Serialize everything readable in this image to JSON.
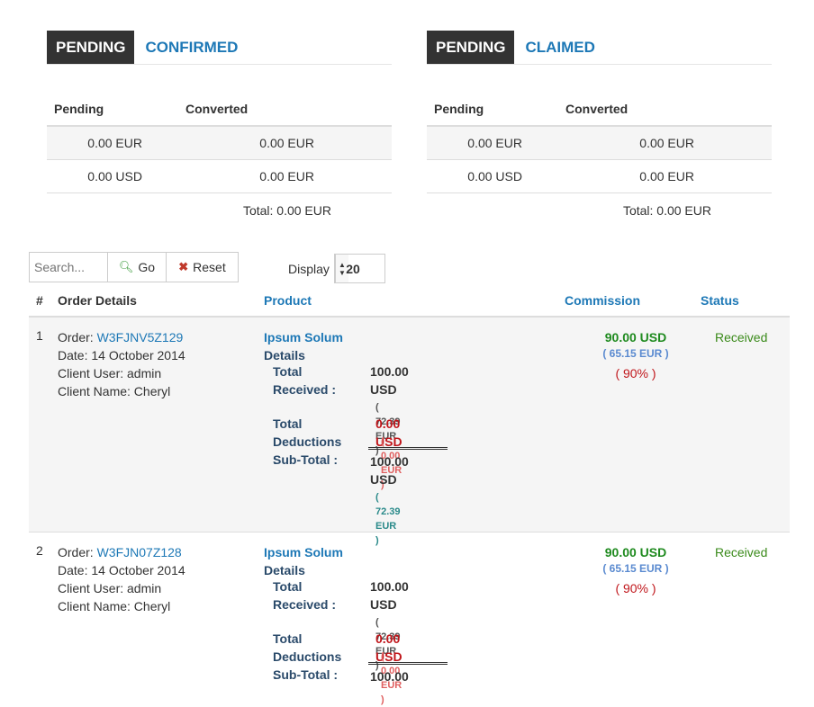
{
  "panels": [
    {
      "tab_active": "PENDING",
      "tab_link": "CONFIRMED",
      "headers": [
        "Pending",
        "Converted"
      ],
      "rows": [
        [
          "0.00 EUR",
          "0.00 EUR"
        ],
        [
          "0.00 USD",
          "0.00 EUR"
        ]
      ],
      "total": "Total: 0.00 EUR"
    },
    {
      "tab_active": "PENDING",
      "tab_link": "CLAIMED",
      "headers": [
        "Pending",
        "Converted"
      ],
      "rows": [
        [
          "0.00 EUR",
          "0.00 EUR"
        ],
        [
          "0.00 USD",
          "0.00 EUR"
        ]
      ],
      "total": "Total: 0.00 EUR"
    }
  ],
  "toolbar": {
    "search_placeholder": "Search...",
    "go_label": "Go",
    "reset_label": "Reset",
    "display_label": "Display",
    "display_value": "20"
  },
  "table": {
    "headers": {
      "num": "#",
      "order_details": "Order Details",
      "product": "Product",
      "commission": "Commission",
      "status": "Status"
    },
    "rows": [
      {
        "num": "1",
        "order_label": "Order:",
        "order_id": "W3FJNV5Z129",
        "date": "Date: 14 October 2014",
        "client_user": "Client User: admin",
        "client_name": "Client Name: Cheryl",
        "product_name": "Ipsum Solum",
        "details_label": "Details",
        "total_received_label": "Total Received :",
        "total_received_amount": "100.00",
        "total_received_currency": "USD",
        "total_received_eur": "( 72.39 EUR )",
        "deductions_label_1": "Total",
        "deductions_label_2": "Deductions :",
        "deductions_usd": "0.00 USD",
        "deductions_eur": "( 0.00 EUR )",
        "subtotal_label": "Sub-Total :",
        "subtotal_amount": "100.00",
        "subtotal_currency": "USD",
        "subtotal_eur": "( 72.39 EUR )",
        "commission_usd": "90.00 USD",
        "commission_eur": "( 65.15 EUR )",
        "commission_pct": "( 90% )",
        "status": "Received"
      },
      {
        "num": "2",
        "order_label": "Order:",
        "order_id": "W3FJN07Z128",
        "date": "Date: 14 October 2014",
        "client_user": "Client User: admin",
        "client_name": "Client Name: Cheryl",
        "product_name": "Ipsum Solum",
        "details_label": "Details",
        "total_received_label": "Total Received :",
        "total_received_amount": "100.00",
        "total_received_currency": "USD",
        "total_received_eur": "( 72.39 EUR )",
        "deductions_label_1": "Total",
        "deductions_label_2": "Deductions :",
        "deductions_usd": "0.00 USD",
        "deductions_eur": "( 0.00 EUR )",
        "subtotal_label": "Sub-Total :",
        "subtotal_amount": "100.00",
        "commission_usd": "90.00 USD",
        "commission_eur": "( 65.15 EUR )",
        "commission_pct": "( 90% )",
        "status": "Received"
      }
    ]
  },
  "icons": {
    "go": "search-icon",
    "reset": "close-icon",
    "select": "caret-icon"
  },
  "colors": {
    "link": "#1d78b6",
    "tab_active_bg": "#333333",
    "commission": "#1e8a1e",
    "status": "#3a8a1a",
    "deduction": "#c0161b"
  }
}
